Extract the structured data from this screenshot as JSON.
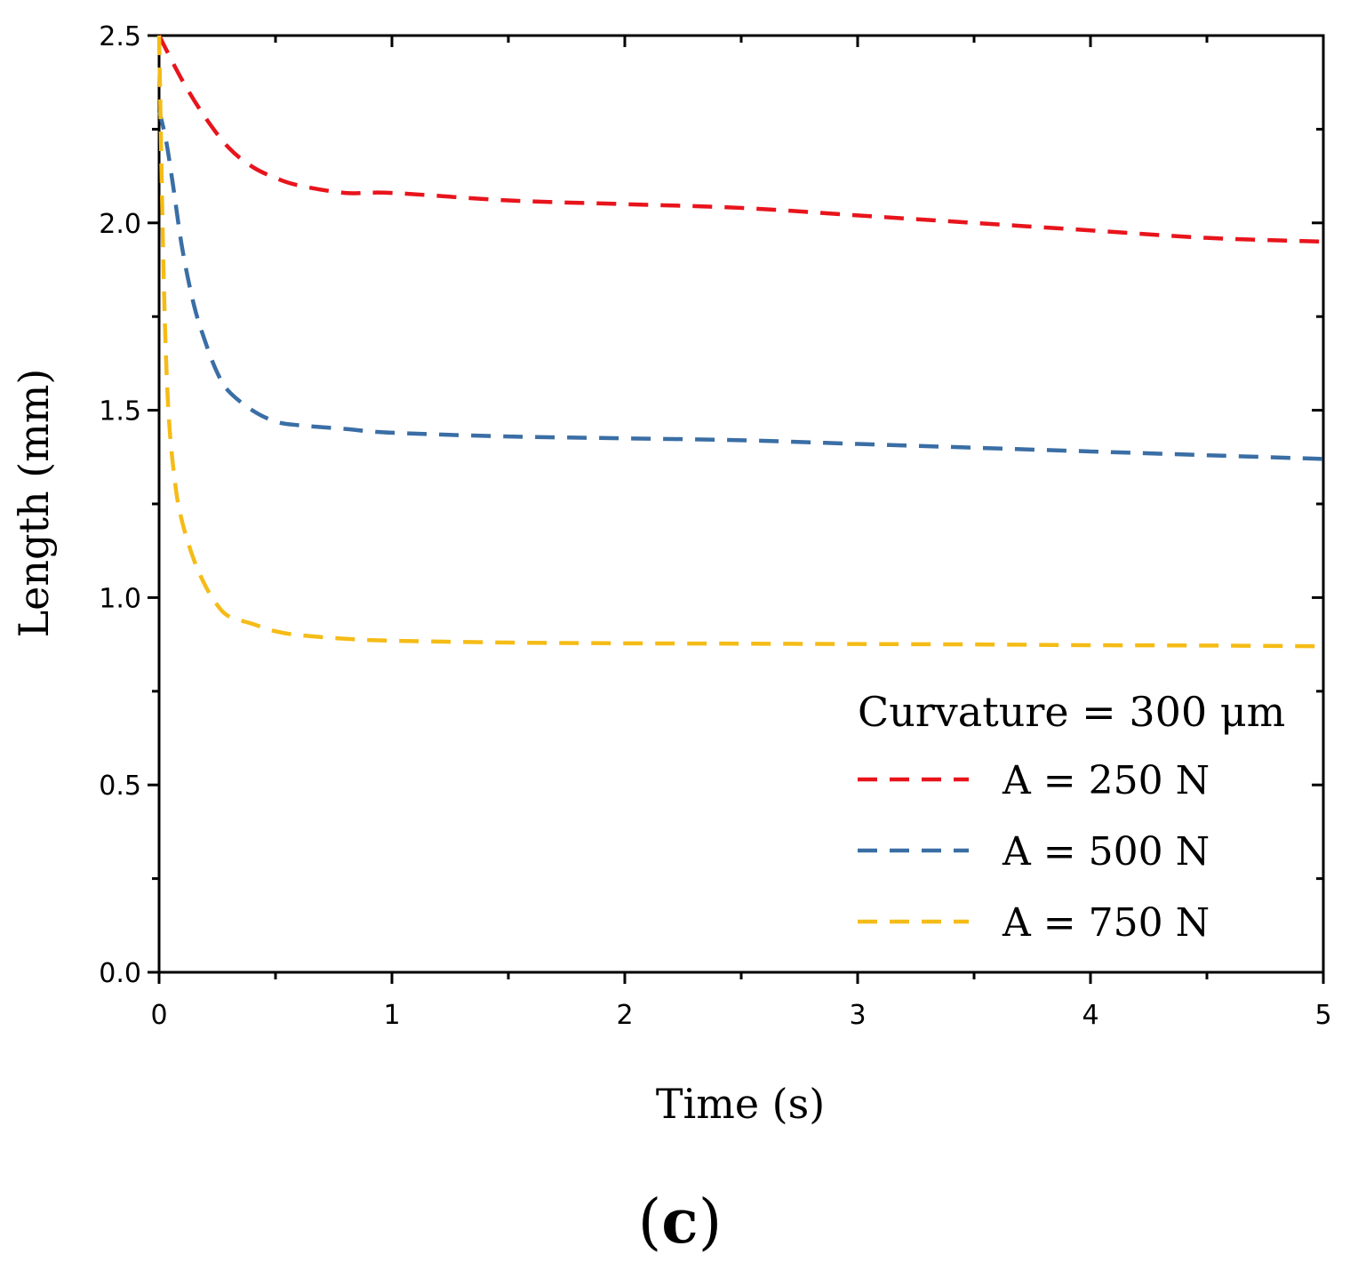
{
  "chart_data": {
    "type": "line",
    "title": "",
    "xlabel": "Time (s)",
    "ylabel": "Length (mm)",
    "xlim": [
      0,
      5
    ],
    "ylim": [
      0,
      2.5
    ],
    "xticks": [
      0,
      1,
      2,
      3,
      4,
      5
    ],
    "xtick_labels": [
      "0",
      "1",
      "2",
      "3",
      "4",
      "5"
    ],
    "yticks": [
      0,
      0.5,
      1,
      1.5,
      2,
      2.5
    ],
    "ytick_labels": [
      "0.0",
      "0.5",
      "1.0",
      "1.5",
      "2.0",
      "2.5"
    ],
    "grid": false,
    "legend_title": "Curvature = 300 μm",
    "legend_position": "bottom-right",
    "panel_label": {
      "open": "(",
      "letter": "c",
      "close": ")"
    },
    "series": [
      {
        "name": "A = 250 N",
        "color": "#e8141c",
        "style": "dashed",
        "x": [
          0,
          0.1,
          0.2,
          0.3,
          0.4,
          0.5,
          0.6,
          0.8,
          1.0,
          1.5,
          2.0,
          2.5,
          3.0,
          3.5,
          4.0,
          4.5,
          5.0
        ],
        "y": [
          2.5,
          2.38,
          2.28,
          2.2,
          2.15,
          2.12,
          2.1,
          2.08,
          2.08,
          2.06,
          2.05,
          2.04,
          2.02,
          2.0,
          1.98,
          1.96,
          1.95
        ]
      },
      {
        "name": "A = 500 N",
        "color": "#3a6ea5",
        "style": "dashed",
        "x": [
          0,
          0.03,
          0.06,
          0.1,
          0.15,
          0.2,
          0.25,
          0.3,
          0.4,
          0.5,
          0.6,
          0.8,
          1.0,
          1.5,
          2.0,
          2.5,
          3.0,
          3.5,
          4.0,
          4.5,
          5.0
        ],
        "y": [
          2.3,
          2.22,
          2.1,
          1.93,
          1.78,
          1.68,
          1.6,
          1.55,
          1.5,
          1.47,
          1.46,
          1.45,
          1.44,
          1.43,
          1.425,
          1.42,
          1.41,
          1.4,
          1.39,
          1.38,
          1.37
        ]
      },
      {
        "name": "A = 750 N",
        "color": "#f5bc17",
        "style": "dashed",
        "x": [
          0,
          0.02,
          0.04,
          0.07,
          0.1,
          0.15,
          0.2,
          0.25,
          0.3,
          0.4,
          0.5,
          0.6,
          0.8,
          1.0,
          1.5,
          2.0,
          2.5,
          3.0,
          3.5,
          4.0,
          4.5,
          5.0
        ],
        "y": [
          2.5,
          1.85,
          1.5,
          1.3,
          1.2,
          1.1,
          1.03,
          0.98,
          0.95,
          0.93,
          0.91,
          0.9,
          0.89,
          0.885,
          0.88,
          0.878,
          0.877,
          0.876,
          0.875,
          0.873,
          0.872,
          0.87
        ]
      }
    ]
  }
}
